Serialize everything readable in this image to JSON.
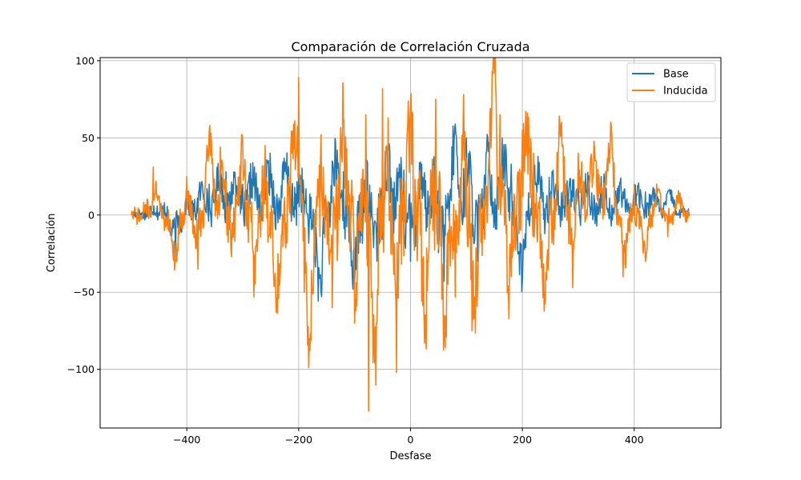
{
  "chart_data": {
    "type": "line",
    "title": "Comparación de Correlación Cruzada",
    "xlabel": "Desfase",
    "ylabel": "Correlación",
    "xlim": [
      -555,
      555
    ],
    "ylim": [
      -138,
      102
    ],
    "xticks": [
      -400,
      -200,
      0,
      200,
      400
    ],
    "xtick_labels": [
      "−400",
      "−200",
      "0",
      "200",
      "400"
    ],
    "yticks": [
      -100,
      -50,
      0,
      50,
      100
    ],
    "ytick_labels": [
      "−100",
      "−50",
      "0",
      "50",
      "100"
    ],
    "grid": true,
    "legend_position": "top-right",
    "x_range": [
      -499,
      499
    ],
    "series": [
      {
        "name": "Base",
        "color": "#1f77b4",
        "keypoints": [
          [
            -499,
            0
          ],
          [
            -470,
            3
          ],
          [
            -440,
            8
          ],
          [
            -420,
            -27
          ],
          [
            -400,
            10
          ],
          [
            -360,
            20
          ],
          [
            -330,
            28
          ],
          [
            -300,
            20
          ],
          [
            -260,
            27
          ],
          [
            -200,
            28
          ],
          [
            -160,
            -50
          ],
          [
            -140,
            35
          ],
          [
            -120,
            28
          ],
          [
            -100,
            -45
          ],
          [
            -80,
            25
          ],
          [
            -60,
            -30
          ],
          [
            -40,
            47
          ],
          [
            -20,
            33
          ],
          [
            0,
            -30
          ],
          [
            20,
            33
          ],
          [
            40,
            28
          ],
          [
            60,
            -43
          ],
          [
            80,
            59
          ],
          [
            100,
            50
          ],
          [
            120,
            -30
          ],
          [
            140,
            47
          ],
          [
            160,
            37
          ],
          [
            180,
            33
          ],
          [
            200,
            -43
          ],
          [
            220,
            28
          ],
          [
            260,
            20
          ],
          [
            300,
            18
          ],
          [
            340,
            17
          ],
          [
            380,
            15
          ],
          [
            420,
            15
          ],
          [
            460,
            15
          ],
          [
            499,
            0
          ]
        ]
      },
      {
        "name": "Inducida",
        "color": "#ff7f0e",
        "keypoints": [
          [
            -499,
            0
          ],
          [
            -480,
            -2
          ],
          [
            -460,
            31
          ],
          [
            -440,
            -10
          ],
          [
            -420,
            -30
          ],
          [
            -400,
            25
          ],
          [
            -380,
            -35
          ],
          [
            -360,
            54
          ],
          [
            -340,
            44
          ],
          [
            -320,
            -27
          ],
          [
            -300,
            47
          ],
          [
            -280,
            -53
          ],
          [
            -260,
            45
          ],
          [
            -240,
            -63
          ],
          [
            -200,
            89
          ],
          [
            -190,
            -50
          ],
          [
            -180,
            -88
          ],
          [
            -160,
            52
          ],
          [
            -140,
            -60
          ],
          [
            -120,
            62
          ],
          [
            -100,
            -70
          ],
          [
            -80,
            65
          ],
          [
            -75,
            -127
          ],
          [
            -60,
            -70
          ],
          [
            -50,
            82
          ],
          [
            -40,
            63
          ],
          [
            -25,
            -102
          ],
          [
            0,
            70
          ],
          [
            10,
            15
          ],
          [
            25,
            -83
          ],
          [
            45,
            75
          ],
          [
            60,
            -69
          ],
          [
            80,
            -53
          ],
          [
            95,
            78
          ],
          [
            110,
            -75
          ],
          [
            150,
            92
          ],
          [
            160,
            65
          ],
          [
            175,
            -52
          ],
          [
            200,
            55
          ],
          [
            220,
            40
          ],
          [
            240,
            -50
          ],
          [
            270,
            60
          ],
          [
            290,
            -47
          ],
          [
            300,
            40
          ],
          [
            330,
            35
          ],
          [
            360,
            50
          ],
          [
            380,
            -40
          ],
          [
            400,
            20
          ],
          [
            420,
            -30
          ],
          [
            440,
            20
          ],
          [
            460,
            -14
          ],
          [
            480,
            13
          ],
          [
            499,
            0
          ]
        ]
      }
    ]
  }
}
